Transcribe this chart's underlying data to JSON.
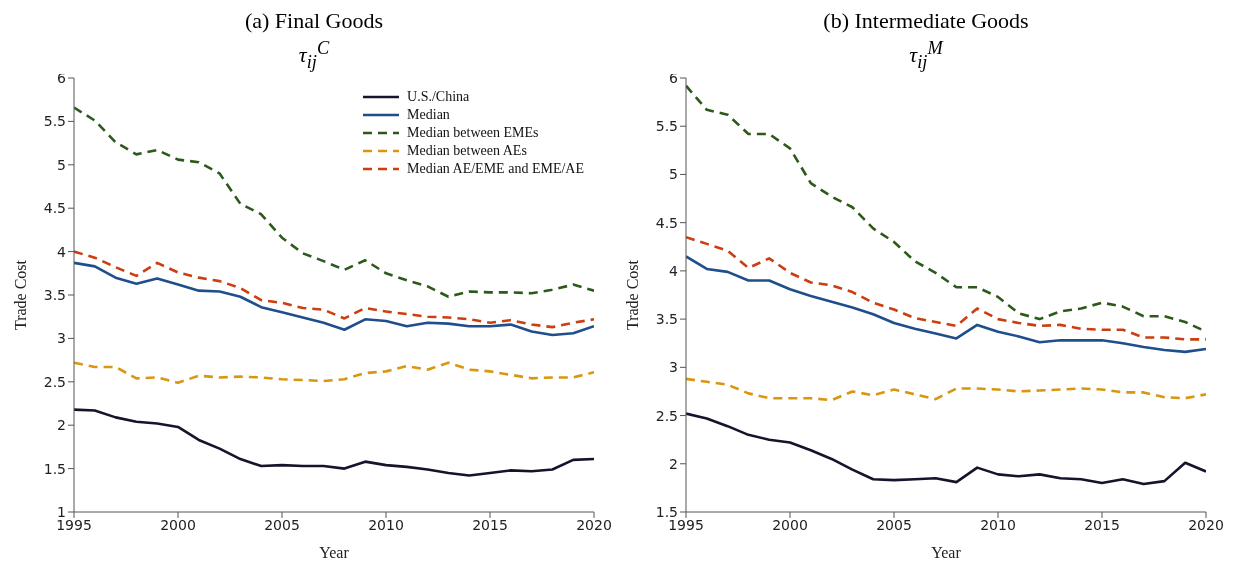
{
  "chart_data": [
    {
      "type": "line",
      "title": "(a) Final Goods",
      "subtitle": "τ$_{ij}$$^{C}$",
      "xlabel": "Year",
      "ylabel": "Trade Cost",
      "x": [
        1995,
        1996,
        1997,
        1998,
        1999,
        2000,
        2001,
        2002,
        2003,
        2004,
        2005,
        2006,
        2007,
        2008,
        2009,
        2010,
        2011,
        2012,
        2013,
        2014,
        2015,
        2016,
        2017,
        2018,
        2019,
        2020
      ],
      "xlim": [
        1995,
        2020
      ],
      "xticks": [
        1995,
        2000,
        2005,
        2010,
        2015,
        2020
      ],
      "ylim": [
        1,
        6
      ],
      "yticks": [
        1,
        1.5,
        2,
        2.5,
        3,
        3.5,
        4,
        4.5,
        5,
        5.5,
        6
      ],
      "legend": "top right",
      "marker": "none",
      "series": [
        {
          "name": "U.S./China",
          "color": "#14142b",
          "line_style": "solid",
          "values": [
            2.18,
            2.17,
            2.09,
            2.04,
            2.02,
            1.98,
            1.83,
            1.73,
            1.61,
            1.53,
            1.54,
            1.53,
            1.53,
            1.5,
            1.58,
            1.54,
            1.52,
            1.49,
            1.45,
            1.42,
            1.45,
            1.48,
            1.47,
            1.49,
            1.6,
            1.61
          ]
        },
        {
          "name": "Median",
          "color": "#1f4e8c",
          "line_style": "solid",
          "values": [
            3.87,
            3.83,
            3.7,
            3.63,
            3.69,
            3.62,
            3.55,
            3.54,
            3.48,
            3.36,
            3.3,
            3.24,
            3.18,
            3.1,
            3.22,
            3.2,
            3.14,
            3.18,
            3.17,
            3.14,
            3.14,
            3.16,
            3.08,
            3.04,
            3.06,
            3.14
          ]
        },
        {
          "name": "Median between EMEs",
          "color": "#2d5a1b",
          "line_style": "dashed",
          "values": [
            5.66,
            5.51,
            5.26,
            5.12,
            5.17,
            5.06,
            5.03,
            4.9,
            4.55,
            4.43,
            4.16,
            3.98,
            3.89,
            3.79,
            3.9,
            3.75,
            3.67,
            3.6,
            3.48,
            3.54,
            3.53,
            3.53,
            3.52,
            3.56,
            3.62,
            3.55
          ]
        },
        {
          "name": "Median between AEs",
          "color": "#d9960f",
          "line_style": "dashed",
          "values": [
            2.72,
            2.67,
            2.67,
            2.54,
            2.55,
            2.49,
            2.57,
            2.55,
            2.56,
            2.55,
            2.53,
            2.52,
            2.51,
            2.53,
            2.6,
            2.62,
            2.68,
            2.64,
            2.72,
            2.64,
            2.62,
            2.58,
            2.54,
            2.55,
            2.55,
            2.61
          ]
        },
        {
          "name": "Median AE/EME and EME/AE",
          "color": "#cc3d0f",
          "line_style": "dashed",
          "values": [
            4.0,
            3.93,
            3.82,
            3.72,
            3.87,
            3.76,
            3.7,
            3.66,
            3.58,
            3.44,
            3.41,
            3.35,
            3.33,
            3.23,
            3.35,
            3.31,
            3.28,
            3.25,
            3.24,
            3.22,
            3.18,
            3.21,
            3.16,
            3.13,
            3.18,
            3.22
          ]
        }
      ]
    },
    {
      "type": "line",
      "title": "(b) Intermediate Goods",
      "subtitle": "τ$_{ij}$$^{M}$",
      "xlabel": "Year",
      "ylabel": "Trade Cost",
      "x": [
        1995,
        1996,
        1997,
        1998,
        1999,
        2000,
        2001,
        2002,
        2003,
        2004,
        2005,
        2006,
        2007,
        2008,
        2009,
        2010,
        2011,
        2012,
        2013,
        2014,
        2015,
        2016,
        2017,
        2018,
        2019,
        2020
      ],
      "xlim": [
        1995,
        2020
      ],
      "xticks": [
        1995,
        2000,
        2005,
        2010,
        2015,
        2020
      ],
      "ylim": [
        1.5,
        6
      ],
      "yticks": [
        1.5,
        2,
        2.5,
        3,
        3.5,
        4,
        4.5,
        5,
        5.5,
        6
      ],
      "marker": "none",
      "series": [
        {
          "color": "#14142b",
          "line_style": "solid",
          "values": [
            2.52,
            2.47,
            2.39,
            2.3,
            2.25,
            2.22,
            2.14,
            2.05,
            1.94,
            1.84,
            1.83,
            1.84,
            1.85,
            1.81,
            1.96,
            1.89,
            1.87,
            1.89,
            1.85,
            1.84,
            1.8,
            1.84,
            1.79,
            1.82,
            2.01,
            1.92
          ]
        },
        {
          "color": "#1f4e8c",
          "line_style": "solid",
          "values": [
            4.15,
            4.02,
            3.99,
            3.9,
            3.9,
            3.81,
            3.74,
            3.68,
            3.62,
            3.55,
            3.46,
            3.4,
            3.35,
            3.3,
            3.44,
            3.37,
            3.32,
            3.26,
            3.28,
            3.28,
            3.28,
            3.25,
            3.21,
            3.18,
            3.16,
            3.19
          ]
        },
        {
          "color": "#2d5a1b",
          "line_style": "dashed",
          "values": [
            5.92,
            5.67,
            5.62,
            5.42,
            5.42,
            5.27,
            4.91,
            4.77,
            4.66,
            4.44,
            4.3,
            4.1,
            3.98,
            3.83,
            3.83,
            3.73,
            3.56,
            3.5,
            3.58,
            3.61,
            3.67,
            3.63,
            3.53,
            3.53,
            3.47,
            3.37
          ]
        },
        {
          "color": "#d9960f",
          "line_style": "dashed",
          "values": [
            2.88,
            2.85,
            2.82,
            2.73,
            2.68,
            2.68,
            2.68,
            2.66,
            2.75,
            2.71,
            2.77,
            2.72,
            2.67,
            2.78,
            2.78,
            2.77,
            2.75,
            2.76,
            2.77,
            2.78,
            2.77,
            2.74,
            2.74,
            2.69,
            2.68,
            2.72
          ]
        },
        {
          "color": "#cc3d0f",
          "line_style": "dashed",
          "values": [
            4.35,
            4.28,
            4.21,
            4.03,
            4.13,
            3.98,
            3.88,
            3.85,
            3.78,
            3.67,
            3.6,
            3.51,
            3.47,
            3.43,
            3.61,
            3.5,
            3.46,
            3.43,
            3.44,
            3.4,
            3.39,
            3.39,
            3.31,
            3.31,
            3.29,
            3.29
          ]
        }
      ]
    }
  ]
}
